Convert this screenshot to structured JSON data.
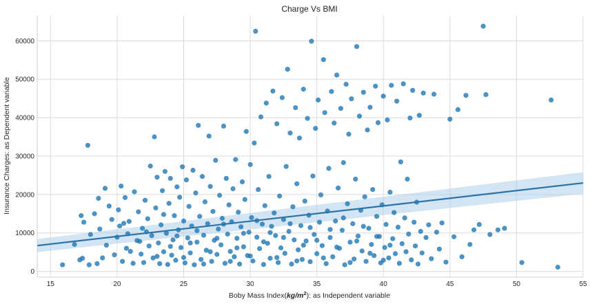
{
  "chart_data": {
    "type": "scatter",
    "title": "Charge Vs BMI",
    "xlabel_parts": [
      "Boby Mass Index(",
      "kg/m",
      "2",
      "): as Independent variable"
    ],
    "ylabel": "Insurance Charges: as Dependent variable",
    "xlim": [
      14,
      55
    ],
    "ylim": [
      -1500,
      66500
    ],
    "xticks": [
      15,
      20,
      25,
      30,
      35,
      40,
      45,
      50,
      55
    ],
    "yticks": [
      0,
      10000,
      20000,
      30000,
      40000,
      50000,
      60000
    ],
    "grid": true,
    "colors": {
      "points": "#1f77b4",
      "line": "#2a72a8",
      "band": "#aecde8"
    },
    "regression": {
      "x": [
        14,
        55
      ],
      "y": [
        6700,
        23000
      ],
      "ci_halfwidth_at_ends": [
        1700,
        2800
      ]
    },
    "points": [
      [
        15.9,
        1700
      ],
      [
        16.8,
        7000
      ],
      [
        17.2,
        3000
      ],
      [
        17.3,
        14500
      ],
      [
        17.4,
        3400
      ],
      [
        17.5,
        12800
      ],
      [
        17.8,
        32800
      ],
      [
        17.9,
        1700
      ],
      [
        18.0,
        9600
      ],
      [
        18.3,
        15000
      ],
      [
        18.5,
        2000
      ],
      [
        18.6,
        19000
      ],
      [
        18.7,
        11000
      ],
      [
        18.9,
        3500
      ],
      [
        19.1,
        21600
      ],
      [
        19.2,
        6800
      ],
      [
        19.4,
        17000
      ],
      [
        19.6,
        13500
      ],
      [
        19.8,
        4300
      ],
      [
        20.0,
        8900
      ],
      [
        20.1,
        16000
      ],
      [
        20.2,
        11800
      ],
      [
        20.3,
        22200
      ],
      [
        20.4,
        2600
      ],
      [
        20.6,
        19200
      ],
      [
        20.7,
        6000
      ],
      [
        20.8,
        9800
      ],
      [
        20.9,
        13000
      ],
      [
        21.2,
        2100
      ],
      [
        21.3,
        20700
      ],
      [
        21.5,
        8000
      ],
      [
        21.6,
        15500
      ],
      [
        21.8,
        4500
      ],
      [
        21.9,
        11200
      ],
      [
        22.0,
        2300
      ],
      [
        22.1,
        18500
      ],
      [
        22.3,
        13700
      ],
      [
        22.4,
        6600
      ],
      [
        22.5,
        27400
      ],
      [
        22.6,
        9300
      ],
      [
        22.7,
        3500
      ],
      [
        22.8,
        35000
      ],
      [
        22.9,
        16500
      ],
      [
        23.0,
        24500
      ],
      [
        23.1,
        7400
      ],
      [
        23.2,
        2000
      ],
      [
        23.3,
        12100
      ],
      [
        23.4,
        21000
      ],
      [
        23.5,
        5100
      ],
      [
        23.6,
        26000
      ],
      [
        23.7,
        9900
      ],
      [
        23.8,
        1800
      ],
      [
        23.9,
        17700
      ],
      [
        24.0,
        24200
      ],
      [
        24.1,
        4200
      ],
      [
        24.2,
        8200
      ],
      [
        24.3,
        14500
      ],
      [
        24.4,
        2900
      ],
      [
        24.5,
        22000
      ],
      [
        24.6,
        10800
      ],
      [
        24.7,
        19300
      ],
      [
        24.8,
        6200
      ],
      [
        24.9,
        27200
      ],
      [
        25.0,
        13100
      ],
      [
        25.1,
        2200
      ],
      [
        25.2,
        23800
      ],
      [
        25.3,
        8700
      ],
      [
        25.4,
        16900
      ],
      [
        25.5,
        4800
      ],
      [
        25.6,
        11800
      ],
      [
        25.7,
        26300
      ],
      [
        25.8,
        1700
      ],
      [
        25.9,
        20400
      ],
      [
        26.0,
        7600
      ],
      [
        26.1,
        38000
      ],
      [
        26.2,
        14300
      ],
      [
        26.3,
        3100
      ],
      [
        26.4,
        24700
      ],
      [
        26.5,
        9400
      ],
      [
        26.6,
        18100
      ],
      [
        26.7,
        5500
      ],
      [
        26.8,
        12400
      ],
      [
        26.9,
        35200
      ],
      [
        27.0,
        22100
      ],
      [
        27.1,
        2600
      ],
      [
        27.2,
        15600
      ],
      [
        27.3,
        8100
      ],
      [
        27.4,
        28900
      ],
      [
        27.5,
        4400
      ],
      [
        27.6,
        11000
      ],
      [
        27.7,
        19800
      ],
      [
        27.8,
        6900
      ],
      [
        27.9,
        13800
      ],
      [
        28.0,
        37800
      ],
      [
        28.1,
        2100
      ],
      [
        28.2,
        24200
      ],
      [
        28.3,
        9700
      ],
      [
        28.4,
        17300
      ],
      [
        28.5,
        5200
      ],
      [
        28.6,
        12900
      ],
      [
        28.7,
        21500
      ],
      [
        28.8,
        3800
      ],
      [
        28.9,
        29100
      ],
      [
        29.0,
        8600
      ],
      [
        29.1,
        15400
      ],
      [
        29.2,
        1900
      ],
      [
        29.3,
        11600
      ],
      [
        29.4,
        23300
      ],
      [
        29.5,
        6400
      ],
      [
        29.6,
        18700
      ],
      [
        29.7,
        36400
      ],
      [
        29.8,
        4100
      ],
      [
        29.9,
        10200
      ],
      [
        30.0,
        27800
      ],
      [
        30.1,
        14000
      ],
      [
        30.2,
        2700
      ],
      [
        30.3,
        33400
      ],
      [
        30.4,
        62500
      ],
      [
        30.5,
        8900
      ],
      [
        30.6,
        21300
      ],
      [
        30.7,
        5900
      ],
      [
        30.8,
        40200
      ],
      [
        30.9,
        12300
      ],
      [
        31.0,
        1800
      ],
      [
        31.1,
        17100
      ],
      [
        31.2,
        43800
      ],
      [
        31.3,
        7300
      ],
      [
        31.4,
        24700
      ],
      [
        31.5,
        3400
      ],
      [
        31.6,
        11700
      ],
      [
        31.7,
        46900
      ],
      [
        31.8,
        15200
      ],
      [
        31.9,
        9300
      ],
      [
        32.0,
        38400
      ],
      [
        32.1,
        2300
      ],
      [
        32.2,
        19600
      ],
      [
        32.3,
        6100
      ],
      [
        32.4,
        45200
      ],
      [
        32.5,
        13500
      ],
      [
        32.6,
        4700
      ],
      [
        32.7,
        27300
      ],
      [
        32.8,
        52600
      ],
      [
        32.9,
        10400
      ],
      [
        33.0,
        36000
      ],
      [
        33.1,
        1900
      ],
      [
        33.2,
        16800
      ],
      [
        33.3,
        8200
      ],
      [
        33.4,
        42600
      ],
      [
        33.5,
        22800
      ],
      [
        33.6,
        5600
      ],
      [
        33.7,
        34700
      ],
      [
        33.8,
        11900
      ],
      [
        33.9,
        3100
      ],
      [
        34.0,
        47400
      ],
      [
        34.1,
        18300
      ],
      [
        34.2,
        7900
      ],
      [
        34.3,
        39800
      ],
      [
        34.4,
        14600
      ],
      [
        34.5,
        2500
      ],
      [
        34.6,
        59900
      ],
      [
        34.7,
        24800
      ],
      [
        34.8,
        9600
      ],
      [
        34.9,
        37200
      ],
      [
        35.0,
        4600
      ],
      [
        35.1,
        44600
      ],
      [
        35.2,
        12800
      ],
      [
        35.3,
        19900
      ],
      [
        35.4,
        6700
      ],
      [
        35.5,
        55100
      ],
      [
        35.6,
        41300
      ],
      [
        35.7,
        2000
      ],
      [
        35.8,
        15700
      ],
      [
        35.9,
        26800
      ],
      [
        36.0,
        8800
      ],
      [
        36.1,
        46800
      ],
      [
        36.2,
        3800
      ],
      [
        36.3,
        38600
      ],
      [
        36.4,
        13100
      ],
      [
        36.5,
        51100
      ],
      [
        36.6,
        21700
      ],
      [
        36.7,
        6000
      ],
      [
        36.8,
        42400
      ],
      [
        36.9,
        10700
      ],
      [
        37.0,
        28300
      ],
      [
        37.1,
        1700
      ],
      [
        37.2,
        48700
      ],
      [
        37.3,
        17600
      ],
      [
        37.4,
        35700
      ],
      [
        37.5,
        7600
      ],
      [
        37.6,
        44900
      ],
      [
        37.7,
        12400
      ],
      [
        37.8,
        3200
      ],
      [
        37.9,
        24000
      ],
      [
        38.0,
        58500
      ],
      [
        38.1,
        9200
      ],
      [
        38.2,
        40400
      ],
      [
        38.3,
        15900
      ],
      [
        38.4,
        5300
      ],
      [
        38.5,
        46600
      ],
      [
        38.6,
        19400
      ],
      [
        38.7,
        2600
      ],
      [
        38.8,
        36800
      ],
      [
        38.9,
        11200
      ],
      [
        39.0,
        42700
      ],
      [
        39.1,
        7000
      ],
      [
        39.2,
        21300
      ],
      [
        39.3,
        4100
      ],
      [
        39.4,
        48200
      ],
      [
        39.5,
        14300
      ],
      [
        39.6,
        38700
      ],
      [
        39.7,
        9100
      ],
      [
        39.8,
        2200
      ],
      [
        39.9,
        17300
      ],
      [
        40.0,
        45600
      ],
      [
        40.1,
        6200
      ],
      [
        40.2,
        12200
      ],
      [
        40.3,
        39400
      ],
      [
        40.4,
        3500
      ],
      [
        40.5,
        20600
      ],
      [
        40.6,
        48400
      ],
      [
        40.7,
        8500
      ],
      [
        40.8,
        15300
      ],
      [
        40.9,
        4600
      ],
      [
        41.0,
        44300
      ],
      [
        41.1,
        11500
      ],
      [
        41.2,
        2100
      ],
      [
        41.3,
        28500
      ],
      [
        41.4,
        7200
      ],
      [
        41.5,
        48800
      ],
      [
        41.6,
        13900
      ],
      [
        41.7,
        5100
      ],
      [
        41.8,
        24000
      ],
      [
        41.9,
        9700
      ],
      [
        42.0,
        39900
      ],
      [
        42.1,
        3000
      ],
      [
        42.2,
        47100
      ],
      [
        42.3,
        12800
      ],
      [
        42.4,
        6600
      ],
      [
        42.5,
        18000
      ],
      [
        42.6,
        1900
      ],
      [
        42.7,
        40600
      ],
      [
        42.8,
        10400
      ],
      [
        42.9,
        4800
      ],
      [
        43.0,
        46400
      ],
      [
        43.2,
        8800
      ],
      [
        43.4,
        12100
      ],
      [
        43.6,
        3300
      ],
      [
        43.8,
        46100
      ],
      [
        44.0,
        10200
      ],
      [
        44.2,
        5800
      ],
      [
        44.4,
        12600
      ],
      [
        44.7,
        2400
      ],
      [
        45.0,
        39600
      ],
      [
        45.3,
        9000
      ],
      [
        45.6,
        42100
      ],
      [
        45.9,
        3800
      ],
      [
        46.2,
        45800
      ],
      [
        46.5,
        7000
      ],
      [
        46.8,
        10800
      ],
      [
        47.2,
        12200
      ],
      [
        47.5,
        63800
      ],
      [
        47.7,
        46000
      ],
      [
        48.0,
        9600
      ],
      [
        48.6,
        10800
      ],
      [
        49.1,
        11200
      ],
      [
        50.4,
        2300
      ],
      [
        52.6,
        44600
      ],
      [
        53.1,
        1100
      ],
      [
        20.5,
        12500
      ],
      [
        21.0,
        5200
      ],
      [
        21.7,
        7800
      ],
      [
        22.2,
        10300
      ],
      [
        23.0,
        3900
      ],
      [
        23.5,
        14800
      ],
      [
        24.0,
        6500
      ],
      [
        24.5,
        9200
      ],
      [
        25.0,
        3600
      ],
      [
        25.5,
        7400
      ],
      [
        26.0,
        10600
      ],
      [
        26.5,
        1900
      ],
      [
        27.0,
        5100
      ],
      [
        27.5,
        8600
      ],
      [
        28.0,
        12300
      ],
      [
        28.5,
        2600
      ],
      [
        29.0,
        6100
      ],
      [
        29.5,
        9900
      ],
      [
        30.0,
        4000
      ],
      [
        30.5,
        13200
      ],
      [
        31.0,
        7700
      ],
      [
        31.5,
        10100
      ],
      [
        32.0,
        3600
      ],
      [
        32.5,
        8800
      ],
      [
        33.0,
        12400
      ],
      [
        33.5,
        2700
      ],
      [
        34.0,
        6800
      ],
      [
        34.5,
        11400
      ],
      [
        35.0,
        8100
      ],
      [
        35.5,
        3500
      ],
      [
        36.0,
        10900
      ],
      [
        36.5,
        6300
      ],
      [
        37.0,
        13900
      ],
      [
        37.5,
        2300
      ],
      [
        38.0,
        7900
      ],
      [
        38.5,
        11700
      ],
      [
        39.0,
        4700
      ],
      [
        39.5,
        9100
      ],
      [
        40.0,
        2900
      ],
      [
        40.5,
        6800
      ]
    ]
  }
}
